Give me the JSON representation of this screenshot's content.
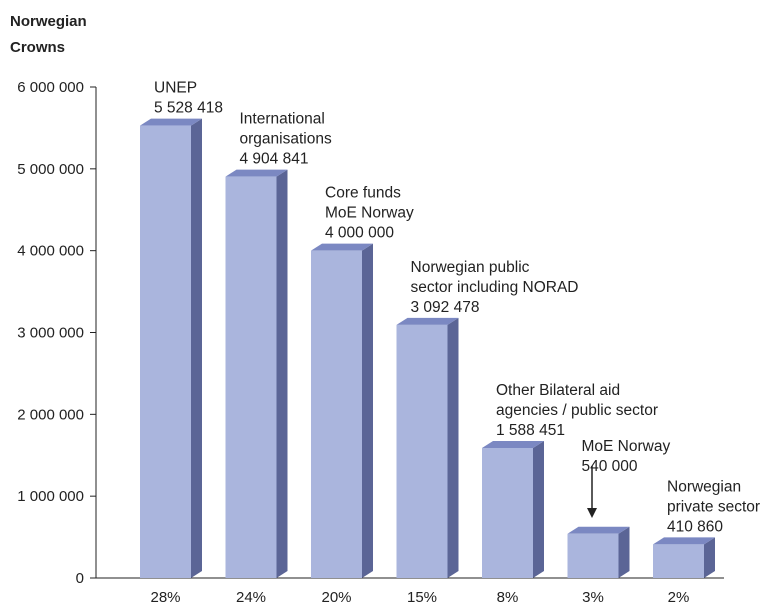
{
  "chart_data": {
    "type": "bar",
    "ylabel_lines": [
      "Norwegian",
      "Crowns"
    ],
    "ylim": [
      0,
      6000000
    ],
    "yticks": [
      {
        "value": 0,
        "label": "0"
      },
      {
        "value": 1000000,
        "label": "1 000 000"
      },
      {
        "value": 2000000,
        "label": "2 000 000"
      },
      {
        "value": 3000000,
        "label": "3 000 000"
      },
      {
        "value": 4000000,
        "label": "4 000 000"
      },
      {
        "value": 5000000,
        "label": "5 000 000"
      },
      {
        "value": 6000000,
        "label": "6 000 000"
      }
    ],
    "categories": [
      "28%",
      "24%",
      "20%",
      "15%",
      "8%",
      "3%",
      "2%"
    ],
    "values": [
      5528418,
      4904841,
      4000000,
      3092478,
      1588451,
      540000,
      410860
    ],
    "bar_labels": [
      [
        "UNEP",
        "5 528 418"
      ],
      [
        "International",
        "organisations",
        "4 904 841"
      ],
      [
        "Core funds",
        "MoE Norway",
        "4 000 000"
      ],
      [
        "Norwegian public",
        "sector including NORAD",
        "3 092 478"
      ],
      [
        "Other Bilateral aid",
        "agencies / public sector",
        "1 588 451"
      ],
      [
        "MoE Norway",
        "540 000"
      ],
      [
        "Norwegian",
        "private sector",
        "410 860"
      ]
    ],
    "grid": false,
    "colors": {
      "front": "#aab5dd",
      "side": "#5b6596",
      "top": "#7b88c2"
    }
  }
}
